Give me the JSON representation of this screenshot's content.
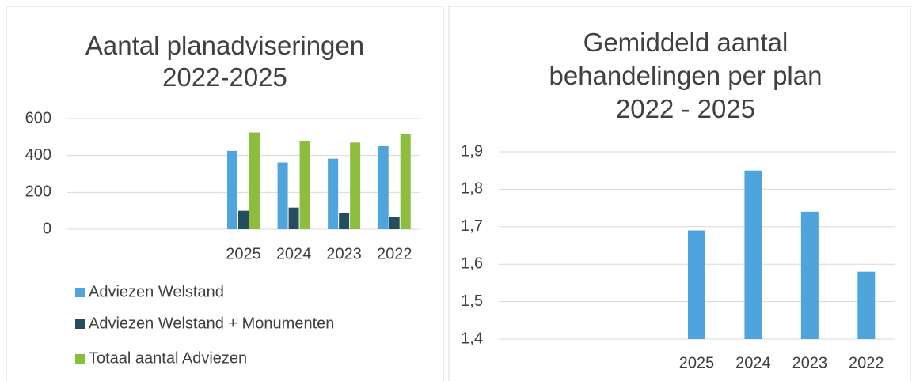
{
  "chart_data": [
    {
      "type": "bar",
      "title": "Aantal planadviseringen 2022-2025",
      "categories": [
        null,
        null,
        null,
        "2025",
        "2024",
        "2023",
        "2022"
      ],
      "series": [
        {
          "name": "Adviezen Welstand",
          "color": "#4ea4dc",
          "values": [
            null,
            null,
            null,
            425,
            362,
            383,
            450
          ]
        },
        {
          "name": "Adviezen Welstand + Monumenten",
          "color": "#264d5e",
          "values": [
            null,
            null,
            null,
            100,
            117,
            87,
            65
          ]
        },
        {
          "name": "Totaal aantal Adviezen",
          "color": "#8cbd3f",
          "values": [
            null,
            null,
            null,
            525,
            479,
            470,
            515
          ]
        }
      ],
      "ylim": [
        0,
        600
      ],
      "yticks": [
        0,
        200,
        400,
        600
      ],
      "grid": true,
      "legend": "bottom"
    },
    {
      "type": "bar",
      "title": "Gemiddeld aantal behandelingen per plan 2022 - 2025",
      "categories": [
        null,
        null,
        null,
        "2025",
        "2024",
        "2023",
        "2022"
      ],
      "series": [
        {
          "name": null,
          "color": "#4ea4dc",
          "values": [
            null,
            null,
            null,
            1.69,
            1.85,
            1.74,
            1.58
          ]
        }
      ],
      "ylim": [
        1.4,
        1.9
      ],
      "yticks": [
        {
          "value": 1.4,
          "label": "1,4"
        },
        {
          "value": 1.5,
          "label": "1,5"
        },
        {
          "value": 1.6,
          "label": "1,6"
        },
        {
          "value": 1.7,
          "label": "1,7"
        },
        {
          "value": 1.8,
          "label": "1,8"
        },
        {
          "value": 1.9,
          "label": "1,9"
        }
      ],
      "grid": true
    }
  ]
}
